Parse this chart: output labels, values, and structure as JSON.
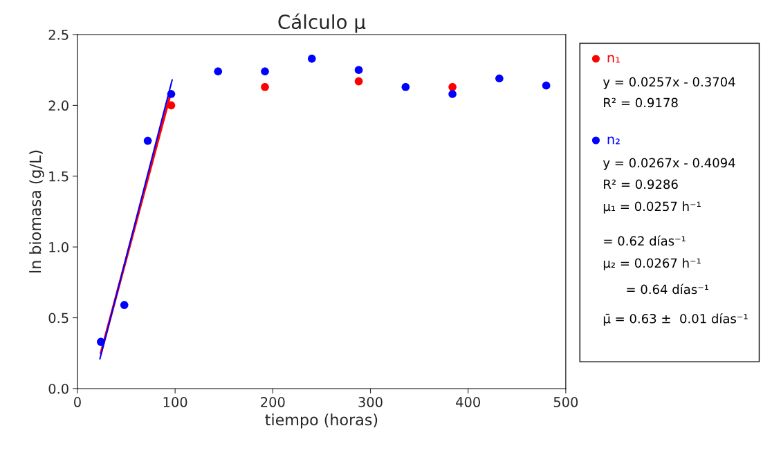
{
  "chart_data": {
    "type": "scatter",
    "title": "Cálculo μ",
    "xlabel": "tiempo (horas)",
    "ylabel": "ln biomasa (g/L)",
    "xlim": [
      0,
      500
    ],
    "xticks": [
      0,
      100,
      200,
      300,
      400,
      500
    ],
    "ylim": [
      0,
      2.5
    ],
    "yticks": [
      {
        "value": 0,
        "label": "0.0"
      },
      {
        "value": 0.5,
        "label": "0.5"
      },
      {
        "value": 1,
        "label": "1.0"
      },
      {
        "value": 1.5,
        "label": "1.5"
      },
      {
        "value": 2,
        "label": "2.0"
      },
      {
        "value": 2.5,
        "label": "2.5"
      }
    ],
    "grid": false,
    "legend": "right",
    "marker": "circle",
    "series": [
      {
        "name": "n₁",
        "color": "#ff0000",
        "x": [
          96,
          192,
          288,
          384
        ],
        "values": [
          2.0,
          2.13,
          2.17,
          2.13
        ]
      },
      {
        "name": "n₂",
        "color": "#0000ff",
        "x": [
          24,
          48,
          72,
          96,
          144,
          192,
          240,
          288,
          336,
          384,
          432,
          480
        ],
        "values": [
          0.33,
          0.59,
          1.75,
          2.08,
          2.24,
          2.24,
          2.33,
          2.25,
          2.13,
          2.08,
          2.19,
          2.14
        ]
      },
      {
        "type": "line",
        "marker": "none",
        "color": "#ff0000",
        "x": [
          24,
          96
        ],
        "values": [
          0.25,
          2.1
        ]
      },
      {
        "type": "line",
        "marker": "none",
        "color": "#0000ff",
        "x": [
          23,
          97
        ],
        "values": [
          0.21,
          2.18
        ]
      }
    ],
    "annotations": [
      "y = 0.0257x - 0.3704",
      "R² = 0.9178",
      "y = 0.0267x - 0.4094",
      "R² = 0.9286",
      "μ₁ = 0.0257 h⁻¹",
      "= 0.62 días⁻¹",
      "μ₂ = 0.0267 h⁻¹",
      "= 0.64 días⁻¹",
      "μ̄ = 0.63 ±  0.01 días⁻¹"
    ]
  }
}
